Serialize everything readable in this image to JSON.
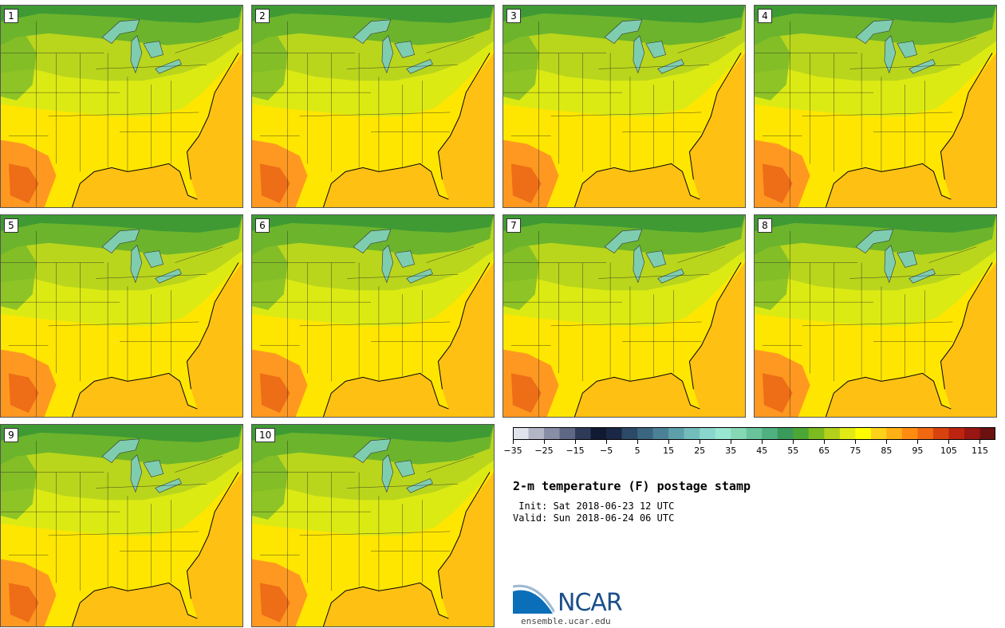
{
  "title": "2-m temperature (F) postage stamp",
  "init_text": " Init: Sat 2018-06-23 12 UTC",
  "valid_text": "Valid: Sun 2018-06-24 06 UTC",
  "logo_text": "NCAR",
  "logo_url": "ensemble.ucar.edu",
  "colorbar": {
    "colors": [
      "#e0e3ec",
      "#b3b6c6",
      "#888ea6",
      "#5e6784",
      "#2f3a59",
      "#111a32",
      "#1a2845",
      "#2c4a68",
      "#3b6682",
      "#4b8196",
      "#5ea0aa",
      "#73bcbc",
      "#8ad6cc",
      "#99e6d2",
      "#86d8b4",
      "#69c49b",
      "#4fb080",
      "#3a9a5c",
      "#4ca635",
      "#7cbb20",
      "#b3d11a",
      "#e1ea14",
      "#ffff00",
      "#ffd21a",
      "#ffb014",
      "#ff8c10",
      "#f06810",
      "#d8420e",
      "#bd2410",
      "#9a1612",
      "#6b1210"
    ],
    "tick_labels": [
      "−35",
      "−25",
      "−15",
      "−5",
      "5",
      "15",
      "25",
      "35",
      "45",
      "55",
      "65",
      "75",
      "85",
      "95",
      "105",
      "115"
    ]
  },
  "members": [
    "1",
    "2",
    "3",
    "4",
    "5",
    "6",
    "7",
    "8",
    "9",
    "10"
  ],
  "map_colors": {
    "ocean": "#ffc014",
    "land_warm": "#ffe600",
    "land_mid": "#dcea14",
    "land_cool": "#b9d61c",
    "north": "#6cb42c",
    "north_dark": "#3f9a34",
    "lakes": "#7fcdb0",
    "hot": "#ff9820",
    "hotter": "#e86414"
  }
}
